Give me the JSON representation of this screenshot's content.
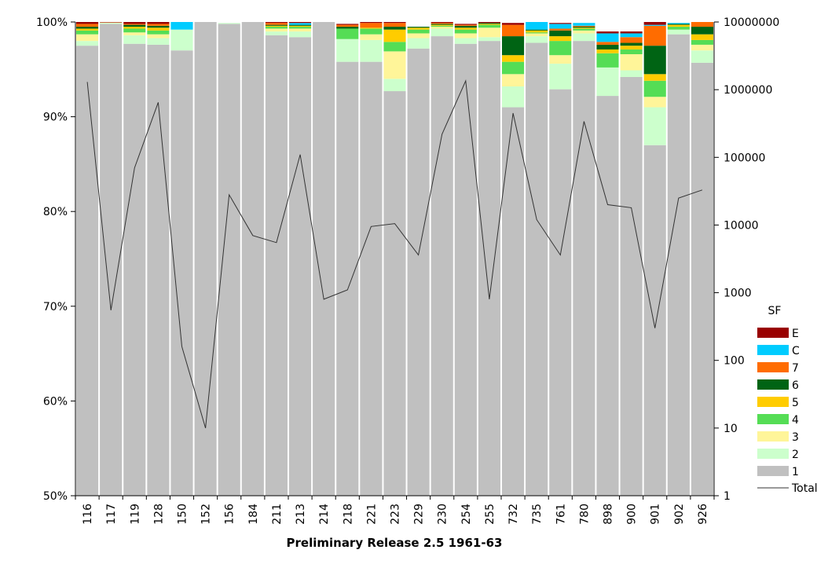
{
  "chart_data": {
    "type": "bar",
    "subtype": "stacked-percent-with-line",
    "title": "",
    "xlabel": "Preliminary Release 2.5 1961-63",
    "ylabel": "",
    "ylim_percent": [
      50,
      100
    ],
    "y_ticks_left": [
      "50%",
      "60%",
      "70%",
      "80%",
      "90%",
      "100%"
    ],
    "y_ticks_right": [
      "1",
      "10",
      "100",
      "1000",
      "10000",
      "100000",
      "1000000",
      "10000000"
    ],
    "y_right_scale": "log",
    "y_right_range": [
      1,
      10000000
    ],
    "grid": false,
    "legend_title": "SF",
    "legend_position": "right",
    "categories": [
      "116",
      "117",
      "119",
      "128",
      "150",
      "152",
      "156",
      "184",
      "211",
      "213",
      "214",
      "218",
      "221",
      "223",
      "229",
      "230",
      "254",
      "255",
      "732",
      "735",
      "761",
      "780",
      "898",
      "900",
      "901",
      "902",
      "926"
    ],
    "colors": {
      "1": "#c0c0c0",
      "2": "#ccffcc",
      "3": "#fff599",
      "4": "#55dd55",
      "5": "#ffcc00",
      "6": "#006414",
      "7": "#ff6c00",
      "C": "#00ccff",
      "E": "#990000",
      "total_line": "#333333"
    },
    "series": [
      {
        "name": "1",
        "values": [
          97.5,
          99.8,
          97.7,
          97.6,
          97.0,
          100,
          99.8,
          100,
          98.6,
          98.4,
          100,
          95.8,
          95.8,
          92.7,
          97.2,
          98.5,
          97.7,
          98.0,
          91.0,
          97.8,
          92.9,
          98.0,
          92.2,
          94.2,
          87.0,
          98.7,
          95.7
        ]
      },
      {
        "name": "2",
        "values": [
          0.5,
          0.1,
          0.9,
          0.7,
          2.2,
          0,
          0.1,
          0,
          0.4,
          0.6,
          0,
          2.4,
          2.3,
          1.3,
          1.1,
          0.8,
          0.6,
          0.4,
          2.2,
          0.7,
          2.7,
          0.8,
          3.0,
          0.7,
          4.0,
          0.5,
          1.3
        ]
      },
      {
        "name": "3",
        "values": [
          0.7,
          0.05,
          0.3,
          0.4,
          0,
          0,
          0,
          0,
          0.3,
          0.3,
          0,
          0,
          0.6,
          2.9,
          0.5,
          0.2,
          0.5,
          1.0,
          1.3,
          0.3,
          0.9,
          0.3,
          0,
          1.7,
          1.1,
          0,
          0.6
        ]
      },
      {
        "name": "4",
        "values": [
          0.4,
          0,
          0.4,
          0.4,
          0,
          0,
          0,
          0,
          0.2,
          0.2,
          0,
          1.1,
          0.6,
          1.0,
          0.4,
          0.1,
          0.4,
          0.3,
          1.3,
          0.1,
          1.5,
          0.2,
          1.5,
          0.5,
          1.7,
          0.3,
          0.5
        ]
      },
      {
        "name": "5",
        "values": [
          0.2,
          0,
          0.2,
          0.3,
          0,
          0,
          0,
          0,
          0.1,
          0.1,
          0,
          0,
          0.1,
          1.3,
          0.2,
          0.1,
          0.2,
          0.1,
          0.7,
          0.2,
          0.5,
          0.1,
          0.4,
          0.4,
          0.7,
          0.2,
          0.6
        ]
      },
      {
        "name": "6",
        "values": [
          0.2,
          0,
          0.2,
          0.2,
          0,
          0,
          0,
          0,
          0.1,
          0.1,
          0,
          0.2,
          0,
          0.3,
          0.1,
          0.1,
          0.2,
          0.1,
          2.0,
          0.1,
          0.6,
          0.1,
          0.5,
          0.3,
          3.0,
          0.1,
          0.8
        ]
      },
      {
        "name": "7",
        "values": [
          0.3,
          0,
          0.1,
          0.2,
          0,
          0,
          0,
          0,
          0.2,
          0,
          0,
          0.2,
          0.5,
          0.4,
          0,
          0.1,
          0.1,
          0,
          1.2,
          0,
          0.2,
          0.1,
          0.3,
          0.6,
          2.1,
          0,
          0.6
        ]
      },
      {
        "name": "C",
        "values": [
          0,
          0,
          0,
          0,
          0.8,
          0,
          0,
          0,
          0,
          0.2,
          0,
          0,
          0,
          0,
          0,
          0,
          0,
          0,
          0,
          0.8,
          0.5,
          0.3,
          0.9,
          0.4,
          0.1,
          0.1,
          0
        ]
      },
      {
        "name": "E",
        "values": [
          0.2,
          0.05,
          0.2,
          0.2,
          0,
          0,
          0,
          0,
          0.1,
          0.1,
          0,
          0.1,
          0.1,
          0.1,
          0,
          0.1,
          0.1,
          0.1,
          0.2,
          0,
          0.1,
          0,
          0.2,
          0.2,
          0.3,
          0,
          0.1
        ]
      }
    ],
    "line_series": {
      "name": "Total",
      "values": [
        1300000,
        550,
        70000,
        650000,
        160,
        10,
        28000,
        7000,
        5500,
        110000,
        800,
        1100,
        9500,
        10500,
        3600,
        220000,
        1350000,
        800,
        450000,
        12000,
        3600,
        340000,
        20000,
        18000,
        300,
        25000,
        33000
      ]
    }
  }
}
